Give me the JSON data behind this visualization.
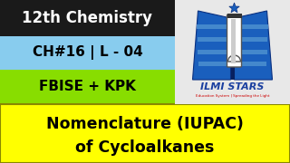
{
  "bg_color": "#f0f0f0",
  "top_left_bg": "#1a1a1a",
  "top_left_text": "12th Chemistry",
  "top_left_text_color": "#ffffff",
  "mid_left_bg": "#88ccee",
  "mid_left_text": "CH#16 | L - 04",
  "mid_left_text_color": "#000000",
  "bot_left_bg": "#88dd00",
  "bot_left_text": "FBISE + KPK",
  "bot_left_text_color": "#000000",
  "bottom_banner_bg": "#ffff00",
  "bottom_banner_text_line1": "Nomenclature (IUPAC)",
  "bottom_banner_text_line2": "of Cycloalkanes",
  "bottom_banner_text_color": "#000000",
  "logo_text": "ILMI STARS",
  "logo_sub": "Education System | Spreading the Light",
  "logo_text_color": "#1a3fa0",
  "logo_sub_color": "#cc0000",
  "outer_border_color": "#888888",
  "banner_border_color": "#888800"
}
